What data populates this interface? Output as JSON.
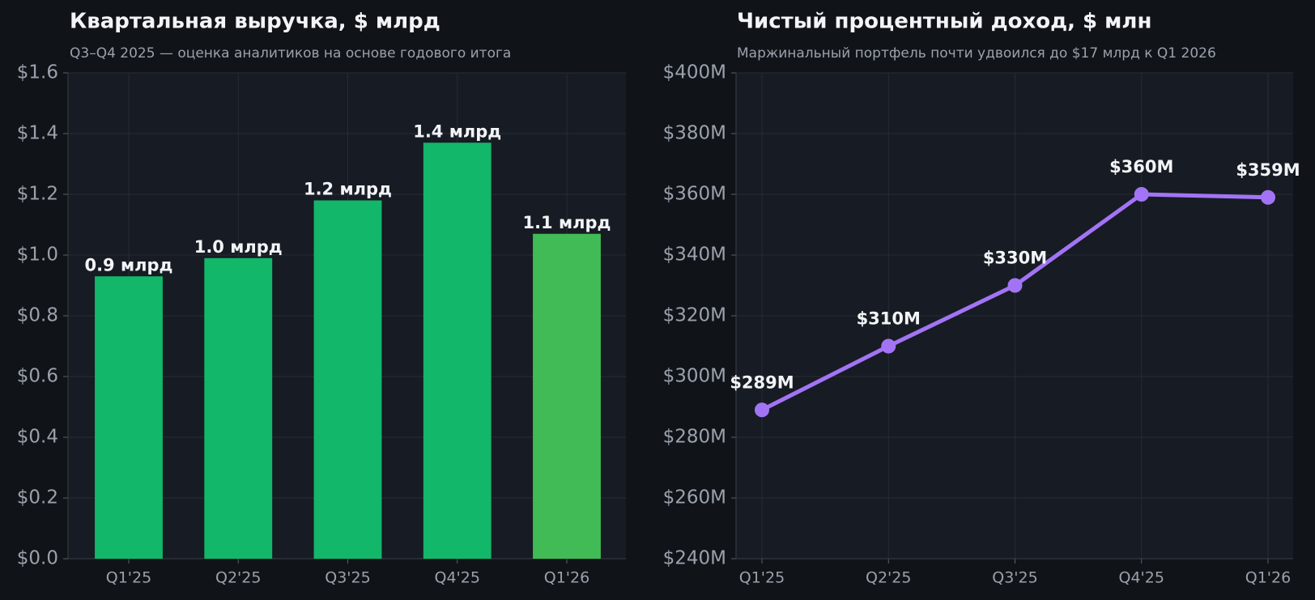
{
  "chart_data": [
    {
      "type": "bar",
      "title": "Квартальная выручка, $ млрд",
      "subtitle": "Q3–Q4 2025 — оценка аналитиков на основе годового итога",
      "categories": [
        "Q1'25",
        "Q2'25",
        "Q3'25",
        "Q4'25",
        "Q1'26"
      ],
      "values": [
        0.93,
        0.99,
        1.18,
        1.37,
        1.07
      ],
      "value_labels": [
        "0.9 млрд",
        "1.0 млрд",
        "1.2 млрд",
        "1.4 млрд",
        "1.1 млрд"
      ],
      "colors": [
        "#12b76a",
        "#12b76a",
        "#12b76a",
        "#12b76a",
        "#40bb55"
      ],
      "ylim": [
        0,
        1.6
      ],
      "yticks": [
        {
          "value": 0,
          "label": "$0.0"
        },
        {
          "value": 0.2,
          "label": "$0.2"
        },
        {
          "value": 0.4,
          "label": "$0.4"
        },
        {
          "value": 0.6,
          "label": "$0.6"
        },
        {
          "value": 0.8,
          "label": "$0.8"
        },
        {
          "value": 1.0,
          "label": "$1.0"
        },
        {
          "value": 1.2,
          "label": "$1.2"
        },
        {
          "value": 1.4,
          "label": "$1.4"
        },
        {
          "value": 1.6,
          "label": "$1.6"
        }
      ],
      "grid": true
    },
    {
      "type": "line",
      "title": "Чистый процентный доход, $ млн",
      "subtitle": "Маржинальный портфель почти удвоился до $17 млрд к Q1 2026",
      "categories": [
        "Q1'25",
        "Q2'25",
        "Q3'25",
        "Q4'25",
        "Q1'26"
      ],
      "values": [
        289,
        310,
        330,
        360,
        359
      ],
      "value_labels": [
        "$289M",
        "$310M",
        "$330M",
        "$360M",
        "$359M"
      ],
      "color": "#a274f5",
      "ylim": [
        240,
        400
      ],
      "yticks": [
        {
          "value": 240,
          "label": "$240M"
        },
        {
          "value": 260,
          "label": "$260M"
        },
        {
          "value": 280,
          "label": "$280M"
        },
        {
          "value": 300,
          "label": "$300M"
        },
        {
          "value": 320,
          "label": "$320M"
        },
        {
          "value": 340,
          "label": "$340M"
        },
        {
          "value": 360,
          "label": "$360M"
        },
        {
          "value": 380,
          "label": "$380M"
        },
        {
          "value": 400,
          "label": "$400M"
        }
      ],
      "grid": true
    }
  ]
}
